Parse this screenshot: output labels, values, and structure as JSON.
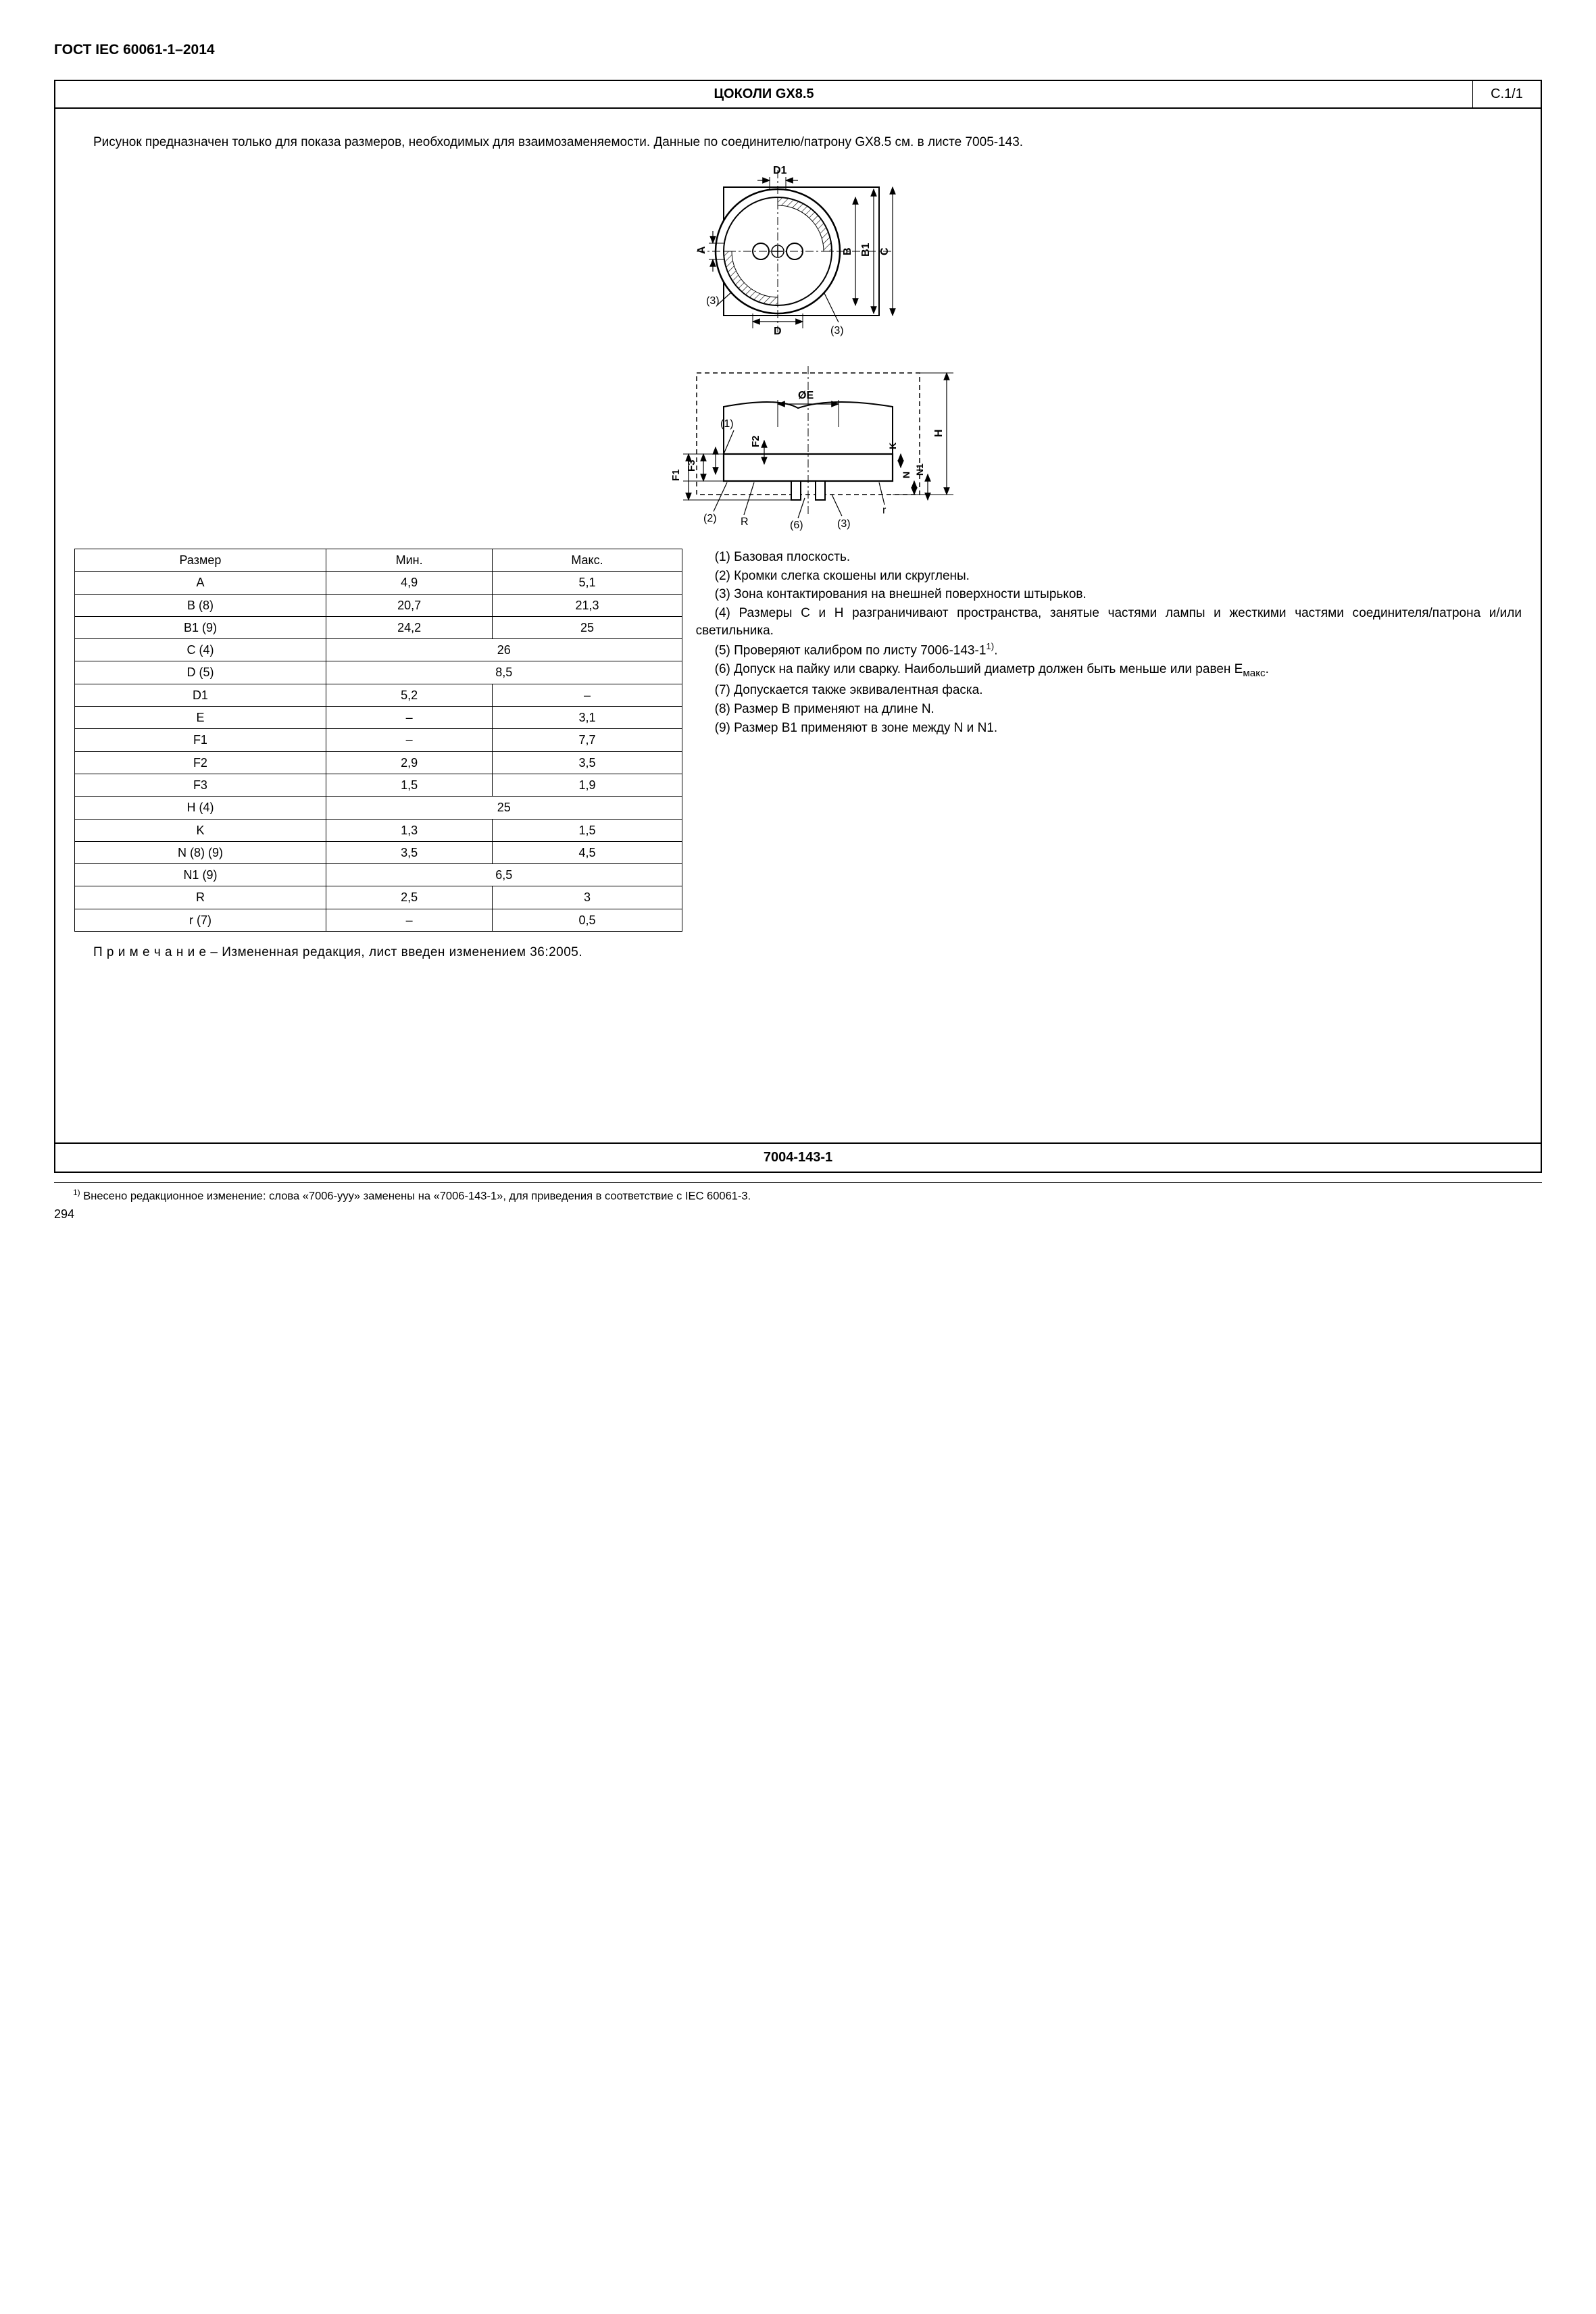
{
  "doc_header": "ГОСТ IEC 60061-1–2014",
  "title_main": "ЦОКОЛИ GX8.5",
  "title_ref": "C.1/1",
  "intro_1": "Рисунок предназначен только для показа размеров, необходимых для взаимозаменяемости. Данные по соединителю/патрону GX8.5 см. в листе 7005-143.",
  "diagram": {
    "top": {
      "labels": [
        "D1",
        "A",
        "B",
        "B1",
        "C",
        "D",
        "(3)",
        "(3)"
      ],
      "stroke": "#000000",
      "fill": "#ffffff",
      "hatch": "#000000"
    },
    "side": {
      "labels": [
        "ØE",
        "(1)",
        "(2)",
        "(3)",
        "(6)",
        "R",
        "r",
        "F1",
        "F2",
        "F3",
        "H",
        "K",
        "N",
        "N1"
      ],
      "stroke": "#000000"
    }
  },
  "table": {
    "headers": [
      "Размер",
      "Мин.",
      "Макс."
    ],
    "rows": [
      {
        "dim": "A",
        "min": "4,9",
        "max": "5,1"
      },
      {
        "dim": "B (8)",
        "min": "20,7",
        "max": "21,3"
      },
      {
        "dim": "B1 (9)",
        "min": "24,2",
        "max": "25"
      },
      {
        "dim": "C (4)",
        "merged": "26"
      },
      {
        "dim": "D (5)",
        "merged": "8,5"
      },
      {
        "dim": "D1",
        "min": "5,2",
        "max": "–"
      },
      {
        "dim": "E",
        "min": "–",
        "max": "3,1"
      },
      {
        "dim": "F1",
        "min": "–",
        "max": "7,7"
      },
      {
        "dim": "F2",
        "min": "2,9",
        "max": "3,5"
      },
      {
        "dim": "F3",
        "min": "1,5",
        "max": "1,9"
      },
      {
        "dim": "H (4)",
        "merged": "25"
      },
      {
        "dim": "K",
        "min": "1,3",
        "max": "1,5"
      },
      {
        "dim": "N (8) (9)",
        "min": "3,5",
        "max": "4,5"
      },
      {
        "dim": "N1 (9)",
        "merged": "6,5"
      },
      {
        "dim": "R",
        "min": "2,5",
        "max": "3"
      },
      {
        "dim": "r (7)",
        "min": "–",
        "max": "0,5"
      }
    ]
  },
  "notes": {
    "n1": "(1) Базовая плоскость.",
    "n2": "(2) Кромки слегка скошены или скруглены.",
    "n3": "(3) Зона контактирования на внешней поверхности штырьков.",
    "n4": "(4) Размеры C и H разграничивают пространства, занятые частями лампы и жесткими частями соединителя/патрона и/или светильника.",
    "n5_pre": "(5) Проверяют калибром по листу 7006-143-1",
    "n5_sup": "1)",
    "n5_post": ".",
    "n6_pre": "(6) Допуск на пайку или сварку. Наибольший диаметр должен быть меньше или равен E",
    "n6_sub": "макс",
    "n6_post": ".",
    "n7": "(7) Допускается также эквивалентная фаска.",
    "n8": "(8) Размер B применяют на длине N.",
    "n9": "(9) Размер B1 применяют в зоне между N и N1."
  },
  "note_block": "П р и м е ч а н и е  – Измененная редакция, лист введен изменением 36:2005.",
  "bottom_ref": "7004-143-1",
  "footnote_sup": "1)",
  "footnote": " Внесено редакционное изменение: слова «7006-yyy» заменены на «7006-143-1», для приведения в соответствие с IEC 60061-3.",
  "pagenum": "294"
}
